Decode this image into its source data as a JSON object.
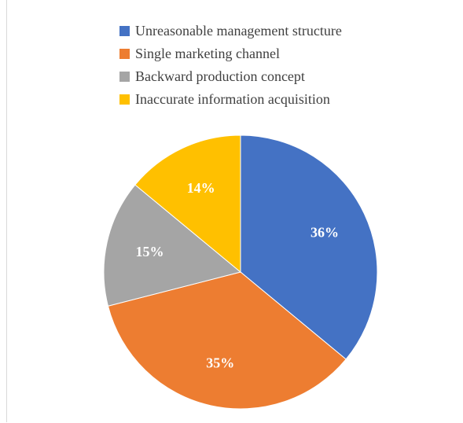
{
  "chart_data": {
    "type": "pie",
    "categories": [
      "Unreasonable management structure",
      "Single marketing channel",
      "Backward production concept",
      "Inaccurate information acquisition"
    ],
    "values": [
      36,
      35,
      15,
      14
    ],
    "labels": [
      "36%",
      "35%",
      "15%",
      "14%"
    ],
    "colors": [
      "#4472c4",
      "#ed7d31",
      "#a5a5a5",
      "#ffc000"
    ],
    "legend_position": "top",
    "start_angle_deg": 0,
    "direction": "clockwise"
  }
}
